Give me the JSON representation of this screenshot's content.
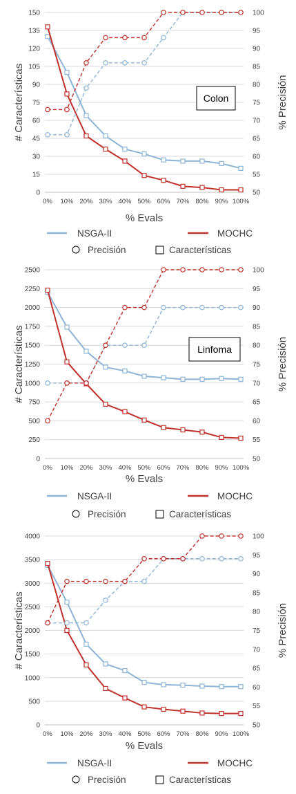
{
  "legend": {
    "nsga_label": "NSGA-II",
    "mochc_label": "MOCHC",
    "precision_label": "Precisión",
    "features_label": "Características"
  },
  "colors": {
    "nsga": "#8db4d6",
    "mochc": "#c0302a",
    "grid": "#d9d9d9",
    "axis": "#bfbfbf",
    "text": "#404040"
  },
  "chart_data": [
    {
      "type": "line",
      "title": "Colon",
      "xlabel": "% Evals",
      "ylabel_left": "# Características",
      "ylabel_right": "% Precisión",
      "categories": [
        "0%",
        "10%",
        "20%",
        "30%",
        "40%",
        "50%",
        "60%",
        "70%",
        "80%",
        "90%",
        "100%"
      ],
      "y_left_lim": [
        0,
        150
      ],
      "y_left_ticks": [
        "0",
        "15",
        "30",
        "45",
        "60",
        "75",
        "90",
        "105",
        "120",
        "135",
        "150"
      ],
      "y_right_lim": [
        50,
        100
      ],
      "y_right_ticks": [
        "50",
        "55",
        "60",
        "65",
        "70",
        "75",
        "80",
        "85",
        "90",
        "95",
        "100"
      ],
      "grid": true,
      "series": [
        {
          "name": "NSGA-II",
          "metric": "Características",
          "axis": "left",
          "marker": "square",
          "values": [
            130,
            100,
            64,
            47,
            36,
            32,
            27,
            26,
            26,
            24,
            20
          ]
        },
        {
          "name": "MOCHC",
          "metric": "Características",
          "axis": "left",
          "marker": "square",
          "values": [
            138,
            82,
            47,
            36,
            26,
            14,
            10,
            5,
            4,
            2,
            2
          ]
        },
        {
          "name": "NSGA-II",
          "metric": "Precisión",
          "axis": "right",
          "marker": "circle",
          "values": [
            66,
            66,
            79,
            86,
            86,
            86,
            93,
            100,
            100,
            100,
            100
          ]
        },
        {
          "name": "MOCHC",
          "metric": "Precisión",
          "axis": "right",
          "marker": "circle",
          "values": [
            73,
            73,
            86,
            93,
            93,
            93,
            100,
            100,
            100,
            100,
            100
          ]
        }
      ]
    },
    {
      "type": "line",
      "title": "Linfoma",
      "xlabel": "% Evals",
      "ylabel_left": "# Características",
      "ylabel_right": "% Precisión",
      "categories": [
        "0%",
        "10%",
        "20%",
        "30%",
        "40%",
        "50%",
        "60%",
        "70%",
        "80%",
        "90%",
        "100%"
      ],
      "y_left_lim": [
        0,
        2500
      ],
      "y_left_ticks": [
        "0",
        "250",
        "500",
        "750",
        "1000",
        "1250",
        "1500",
        "1750",
        "2000",
        "2250",
        "2500"
      ],
      "y_right_lim": [
        50,
        100
      ],
      "y_right_ticks": [
        "50",
        "55",
        "60",
        "65",
        "70",
        "75",
        "80",
        "85",
        "90",
        "95",
        "100"
      ],
      "grid": true,
      "series": [
        {
          "name": "NSGA-II",
          "metric": "Características",
          "axis": "left",
          "marker": "square",
          "values": [
            2200,
            1740,
            1420,
            1210,
            1160,
            1090,
            1070,
            1050,
            1050,
            1060,
            1050
          ]
        },
        {
          "name": "MOCHC",
          "metric": "Características",
          "axis": "left",
          "marker": "square",
          "values": [
            2230,
            1280,
            990,
            720,
            620,
            510,
            410,
            380,
            350,
            280,
            270
          ]
        },
        {
          "name": "NSGA-II",
          "metric": "Precisión",
          "axis": "right",
          "marker": "circle",
          "values": [
            70,
            70,
            70,
            80,
            80,
            80,
            90,
            90,
            90,
            90,
            90
          ]
        },
        {
          "name": "MOCHC",
          "metric": "Precisión",
          "axis": "right",
          "marker": "circle",
          "values": [
            60,
            70,
            70,
            80,
            90,
            90,
            100,
            100,
            100,
            100,
            100
          ]
        }
      ]
    },
    {
      "type": "line",
      "title": "",
      "xlabel": "% Evals",
      "ylabel_left": "# Características",
      "ylabel_right": "% Precisión",
      "categories": [
        "0%",
        "10%",
        "20%",
        "30%",
        "40%",
        "50%",
        "60%",
        "70%",
        "80%",
        "90%",
        "100%"
      ],
      "y_left_lim": [
        0,
        4000
      ],
      "y_left_ticks": [
        "0",
        "500",
        "1000",
        "1500",
        "2000",
        "2500",
        "3000",
        "3500",
        "4000"
      ],
      "y_right_lim": [
        50,
        100
      ],
      "y_right_ticks": [
        "50",
        "55",
        "60",
        "65",
        "70",
        "75",
        "80",
        "85",
        "90",
        "95",
        "100"
      ],
      "grid": true,
      "series": [
        {
          "name": "NSGA-II",
          "metric": "Características",
          "axis": "left",
          "marker": "square",
          "values": [
            3380,
            2600,
            1710,
            1290,
            1150,
            900,
            850,
            840,
            820,
            810,
            810
          ]
        },
        {
          "name": "MOCHC",
          "metric": "Características",
          "axis": "left",
          "marker": "square",
          "values": [
            3420,
            2000,
            1270,
            770,
            570,
            380,
            330,
            290,
            250,
            240,
            240
          ]
        },
        {
          "name": "NSGA-II",
          "metric": "Precisión",
          "axis": "right",
          "marker": "circle",
          "values": [
            77,
            77,
            77,
            83,
            88,
            88,
            94,
            94,
            94,
            94,
            94
          ]
        },
        {
          "name": "MOCHC",
          "metric": "Precisión",
          "axis": "right",
          "marker": "circle",
          "values": [
            77,
            88,
            88,
            88,
            88,
            94,
            94,
            94,
            100,
            100,
            100
          ]
        }
      ]
    }
  ]
}
